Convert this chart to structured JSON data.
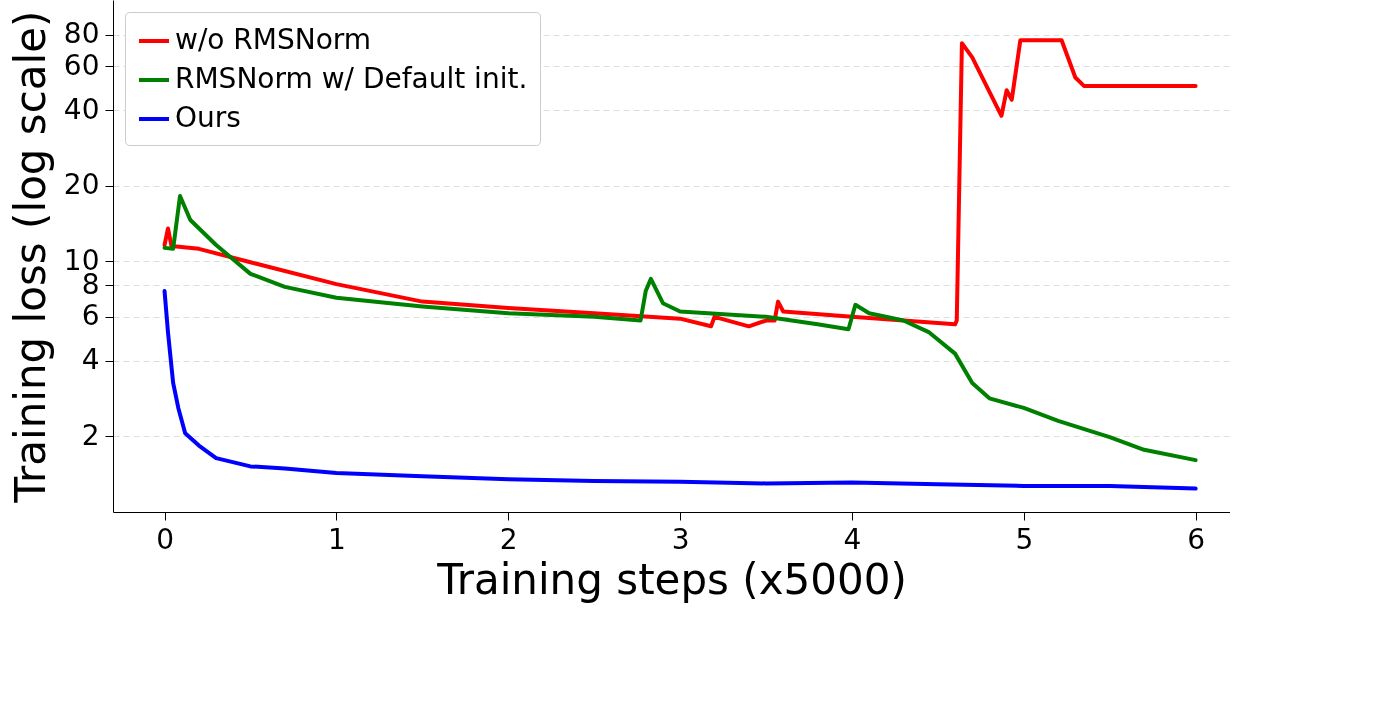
{
  "chart_data": {
    "type": "line",
    "xlabel": "Training steps (x5000)",
    "ylabel": "Training loss (log scale)",
    "log": "y",
    "grid": "y",
    "legend": "top left",
    "marker": "none",
    "line_style": "solid",
    "xlim": [
      -0.3,
      6.2
    ],
    "xticks": [
      0,
      1,
      2,
      3,
      4,
      5,
      6
    ],
    "ylim": [
      1,
      110
    ],
    "yticks": [
      2,
      4,
      6,
      8,
      10,
      20,
      40,
      60,
      80
    ],
    "series": [
      {
        "name": "w/o RMSNorm",
        "color": "#ff0000",
        "x": [
          0,
          0.02,
          0.04,
          0.2,
          0.5,
          1,
          1.5,
          2,
          2.5,
          3,
          3.18,
          3.2,
          3.4,
          3.5,
          3.55,
          3.57,
          3.6,
          4,
          4.3,
          4.6,
          4.61,
          4.64,
          4.7,
          4.87,
          4.9,
          4.93,
          4.98,
          5.22,
          5.3,
          5.35,
          6
        ],
        "values": [
          11.6,
          13.5,
          11.5,
          11.2,
          9.9,
          8.1,
          6.9,
          6.5,
          6.2,
          5.9,
          5.5,
          6.0,
          5.5,
          5.8,
          5.8,
          6.9,
          6.3,
          6.0,
          5.8,
          5.6,
          5.8,
          74,
          65,
          38,
          48,
          44,
          76,
          76,
          54,
          50,
          50
        ]
      },
      {
        "name": "RMSNorm w/ Default init.",
        "color": "#008000",
        "x": [
          0,
          0.05,
          0.09,
          0.15,
          0.3,
          0.5,
          0.7,
          1,
          1.5,
          2,
          2.5,
          2.77,
          2.8,
          2.83,
          2.9,
          3,
          3.5,
          3.8,
          3.98,
          4.02,
          4.1,
          4.3,
          4.45,
          4.6,
          4.7,
          4.8,
          5,
          5.2,
          5.5,
          5.7,
          6
        ],
        "values": [
          11.3,
          11.2,
          18.2,
          14.6,
          11.6,
          8.9,
          7.9,
          7.15,
          6.6,
          6.2,
          6.0,
          5.8,
          7.6,
          8.5,
          6.8,
          6.3,
          6.0,
          5.6,
          5.35,
          6.7,
          6.2,
          5.8,
          5.2,
          4.28,
          3.27,
          2.84,
          2.6,
          2.31,
          1.99,
          1.77,
          1.61
        ]
      },
      {
        "name": "Ours",
        "color": "#0000ff",
        "x": [
          0,
          0.02,
          0.05,
          0.08,
          0.12,
          0.2,
          0.3,
          0.5,
          0.7,
          1,
          1.5,
          2,
          2.5,
          3,
          3.5,
          4,
          4.5,
          5,
          5.5,
          6
        ],
        "values": [
          7.6,
          5.2,
          3.27,
          2.6,
          2.06,
          1.84,
          1.64,
          1.52,
          1.49,
          1.43,
          1.39,
          1.35,
          1.33,
          1.32,
          1.3,
          1.31,
          1.29,
          1.27,
          1.27,
          1.24
        ]
      }
    ]
  }
}
